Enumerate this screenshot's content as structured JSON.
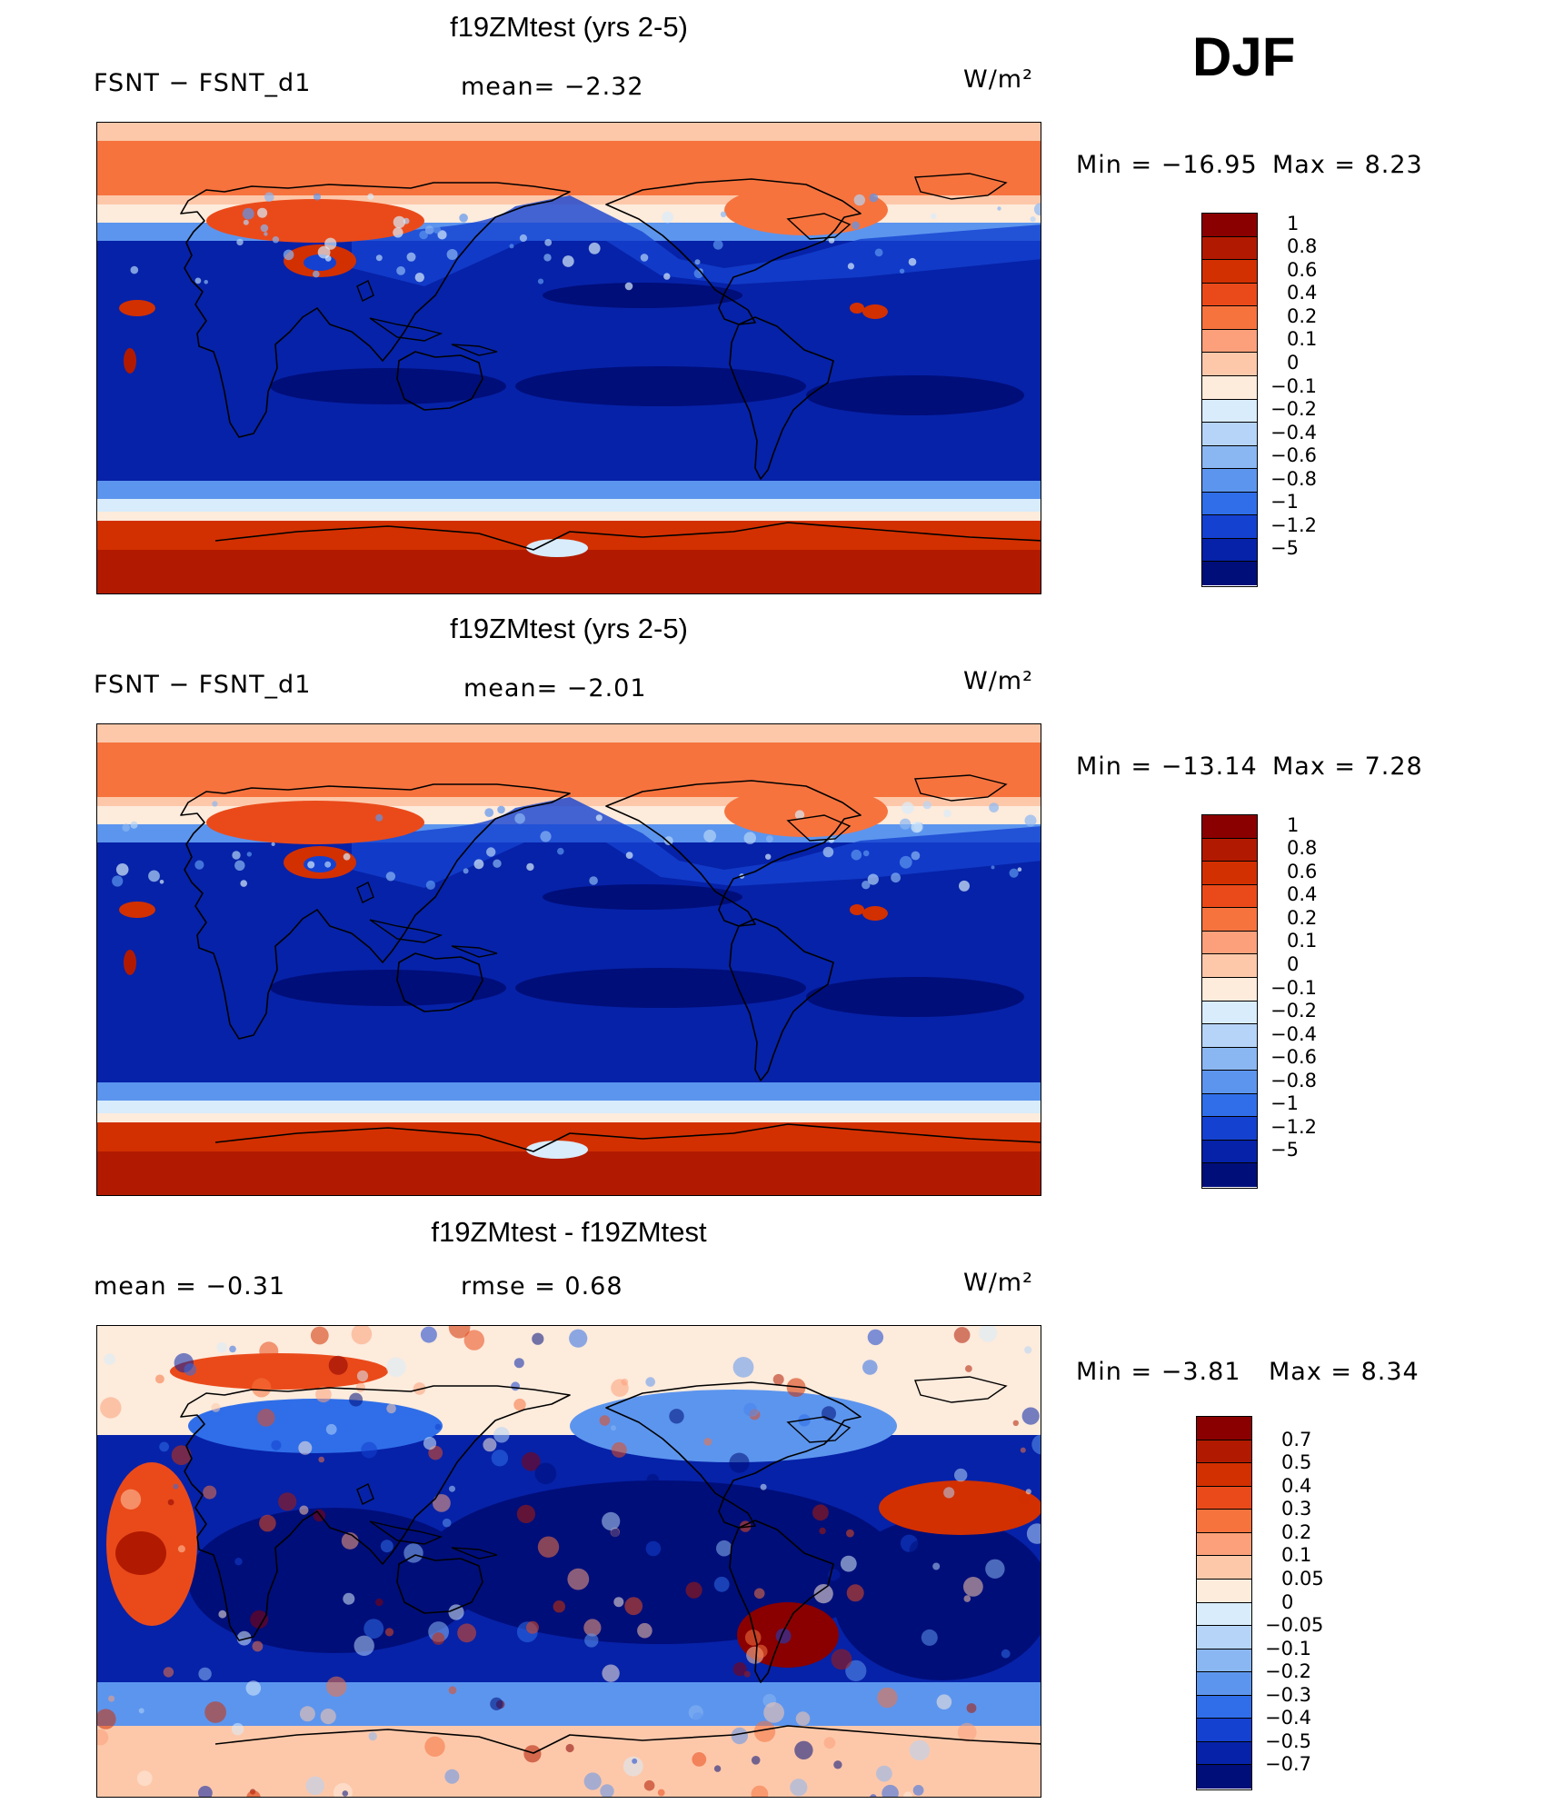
{
  "season": "DJF",
  "panels": [
    {
      "id": "p1",
      "title": "f19ZMtest (yrs 2-5)",
      "left_label": "FSNT  −  FSNT_d1",
      "mid_label": "mean=   −2.32",
      "units": "W/m²",
      "min": "Min  =  −16.95",
      "max": "Max  =     8.23",
      "colorbar": {
        "labels": [
          "1",
          "0.8",
          "0.6",
          "0.4",
          "0.2",
          "0.1",
          "0",
          "−0.1",
          "−0.2",
          "−0.4",
          "−0.6",
          "−0.8",
          "−1",
          "−1.2",
          "−5"
        ],
        "colors": [
          "#8a0000",
          "#b11a00",
          "#d23000",
          "#ea4a1a",
          "#f6733e",
          "#fba07a",
          "#fdc8aa",
          "#fdebdc",
          "#d8ecfb",
          "#b5d4f7",
          "#8ab7f2",
          "#5c95ee",
          "#2f6ee8",
          "#1441d0",
          "#0622a8",
          "#000e7a"
        ]
      },
      "map_style": "model"
    },
    {
      "id": "p2",
      "title": "f19ZMtest (yrs 2-5)",
      "left_label": "FSNT  −  FSNT_d1",
      "mid_label": "mean=   −2.01",
      "units": "W/m²",
      "min": "Min  =  −13.14",
      "max": "Max  =     7.28",
      "colorbar": {
        "labels": [
          "1",
          "0.8",
          "0.6",
          "0.4",
          "0.2",
          "0.1",
          "0",
          "−0.1",
          "−0.2",
          "−0.4",
          "−0.6",
          "−0.8",
          "−1",
          "−1.2",
          "−5"
        ],
        "colors": [
          "#8a0000",
          "#b11a00",
          "#d23000",
          "#ea4a1a",
          "#f6733e",
          "#fba07a",
          "#fdc8aa",
          "#fdebdc",
          "#d8ecfb",
          "#b5d4f7",
          "#8ab7f2",
          "#5c95ee",
          "#2f6ee8",
          "#1441d0",
          "#0622a8",
          "#000e7a"
        ]
      },
      "map_style": "model"
    },
    {
      "id": "p3",
      "title": "f19ZMtest - f19ZMtest",
      "left_label": "mean  =    −0.31",
      "mid_label": "rmse  =     0.68",
      "units": "W/m²",
      "min": "Min  =     −3.81",
      "max": "Max  =    8.34",
      "colorbar": {
        "labels": [
          "0.7",
          "0.5",
          "0.4",
          "0.3",
          "0.2",
          "0.1",
          "0.05",
          "0",
          "−0.05",
          "−0.1",
          "−0.2",
          "−0.3",
          "−0.4",
          "−0.5",
          "−0.7"
        ],
        "colors": [
          "#8a0000",
          "#b11a00",
          "#d23000",
          "#ea4a1a",
          "#f6733e",
          "#fba07a",
          "#fdc8aa",
          "#fdebdc",
          "#d8ecfb",
          "#b5d4f7",
          "#8ab7f2",
          "#5c95ee",
          "#2f6ee8",
          "#1441d0",
          "#0622a8",
          "#000e7a"
        ]
      },
      "map_style": "diff"
    }
  ]
}
